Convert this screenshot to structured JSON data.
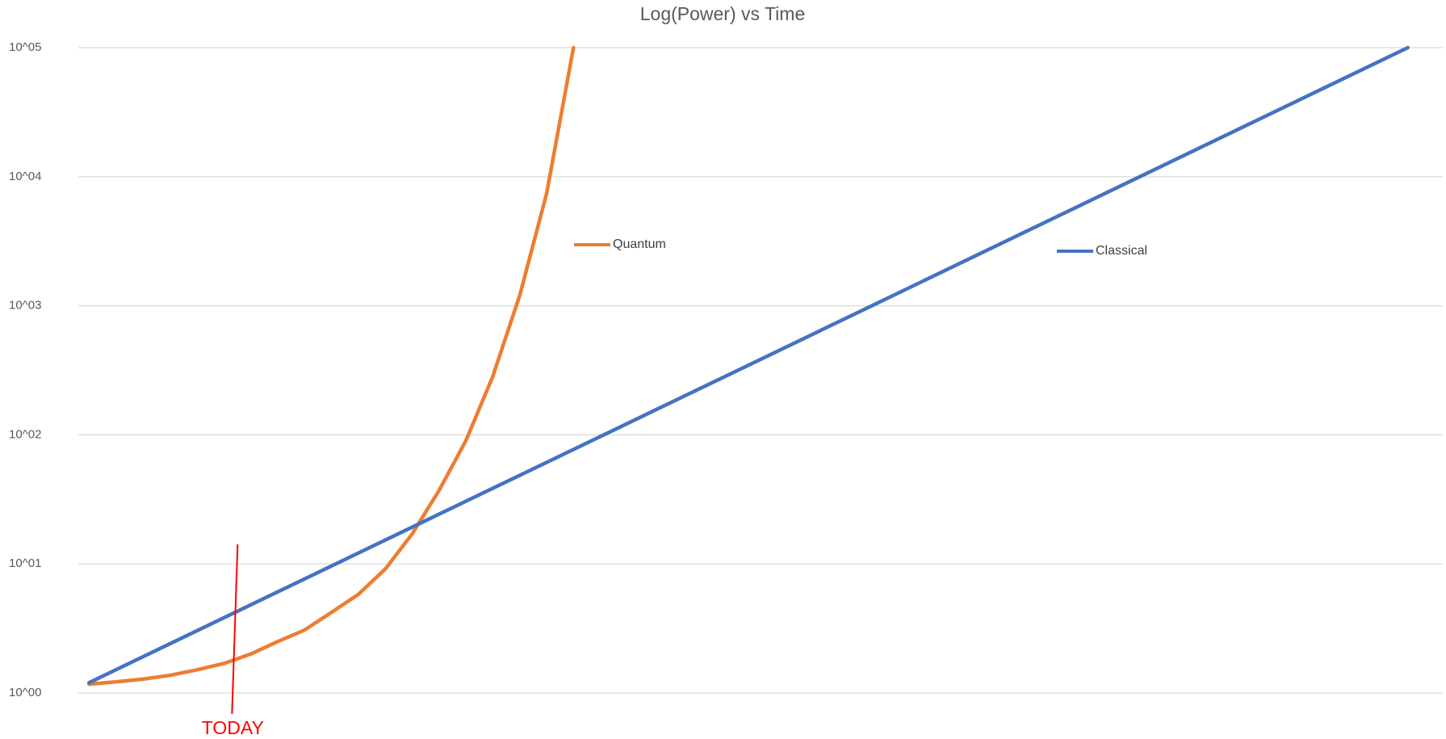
{
  "chart_data": {
    "type": "line",
    "title": "Log(Power)   vs   Time",
    "log_y": true,
    "grid": true,
    "ylim": [
      1,
      100000
    ],
    "yticks": [
      {
        "value": 1,
        "label": "10^00"
      },
      {
        "value": 10,
        "label": "10^01"
      },
      {
        "value": 100,
        "label": "10^02"
      },
      {
        "value": 1000,
        "label": "10^03"
      },
      {
        "value": 10000,
        "label": "10^04"
      },
      {
        "value": 100000,
        "label": "10^05"
      }
    ],
    "xlim": [
      -0.4,
      50.3
    ],
    "series": [
      {
        "name": "Quantum",
        "color": "#ed7d31",
        "x": [
          0,
          1,
          2,
          3,
          4,
          5,
          6,
          7,
          8,
          9,
          10,
          11,
          12,
          13,
          14,
          15,
          16,
          17,
          18
        ],
        "values": [
          1.17,
          1.22,
          1.28,
          1.37,
          1.51,
          1.69,
          2.0,
          2.5,
          3.07,
          4.2,
          5.8,
          9.1,
          17,
          37,
          90,
          283,
          1200,
          7400,
          100000
        ]
      },
      {
        "name": "Classical",
        "color": "#4472c4",
        "x": [
          0,
          49
        ],
        "values": [
          1.2,
          100000
        ]
      }
    ],
    "annotations": [
      {
        "text": "TODAY",
        "x": 5.4,
        "color": "#ff0000"
      }
    ]
  }
}
